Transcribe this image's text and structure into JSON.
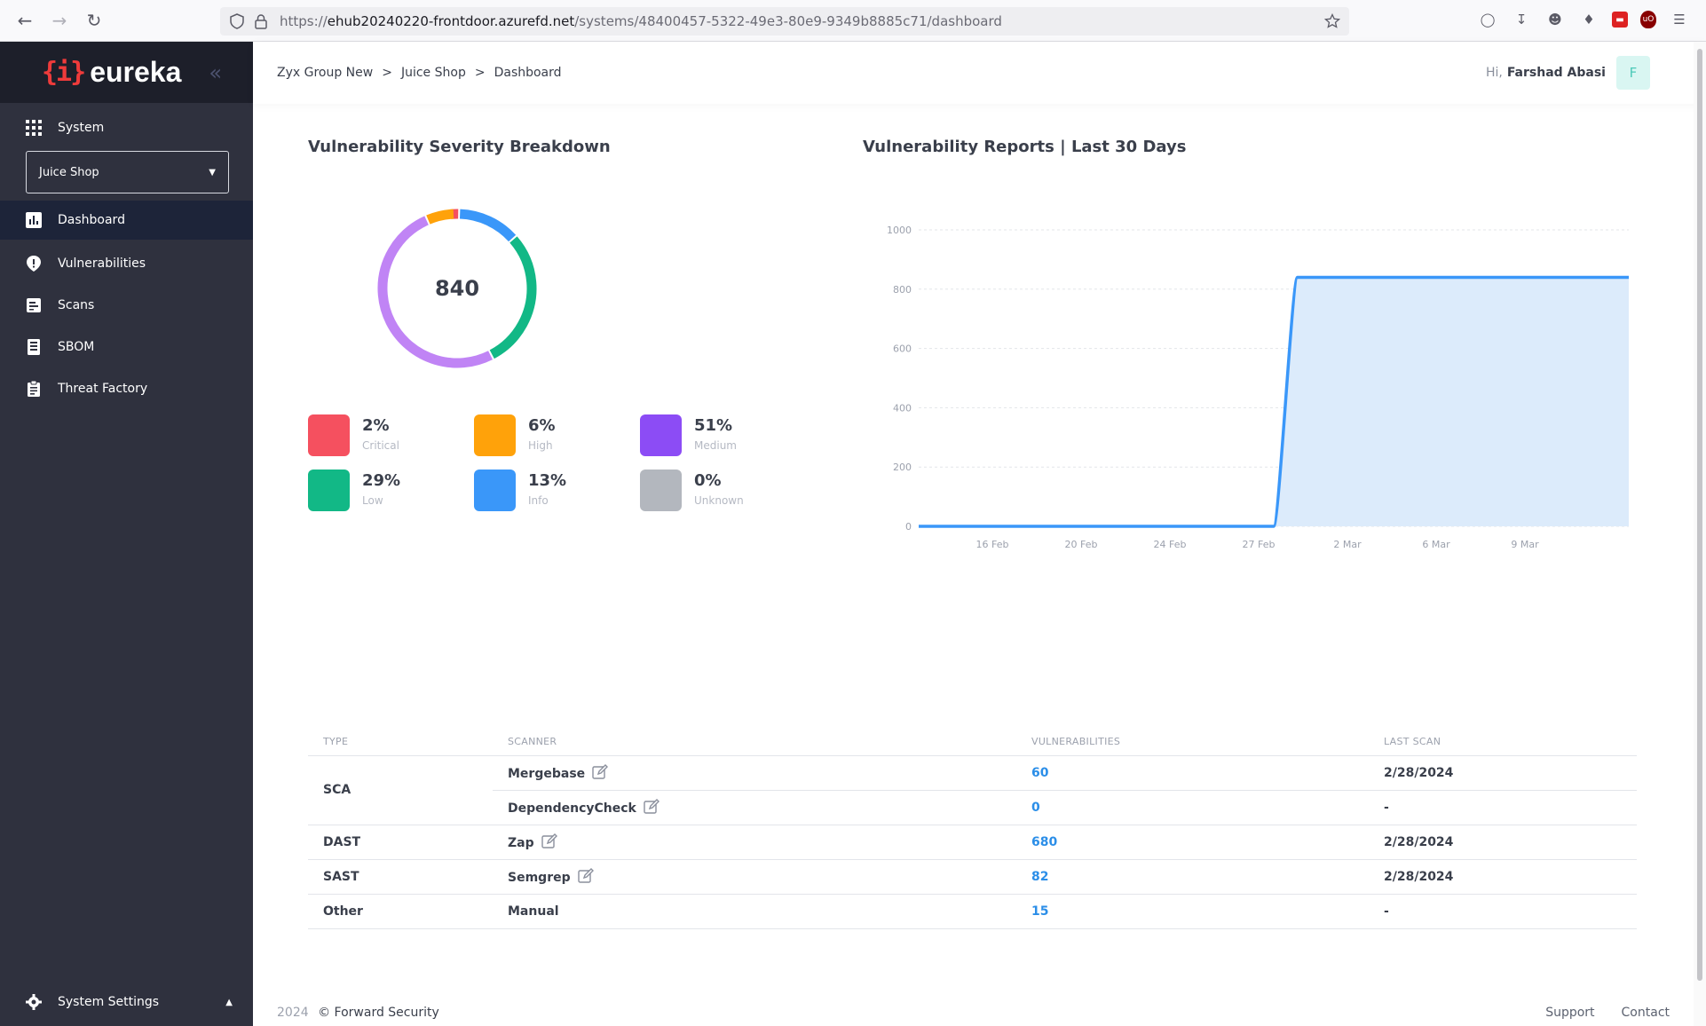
{
  "browser": {
    "url_prefix": "https://",
    "url_host": "ehub20240220-frontdoor.azurefd.net",
    "url_path": "/systems/48400457-5322-49e3-80e9-9349b8885c71/dashboard"
  },
  "sidebar": {
    "logo_mark": "{i}",
    "logo_text": "eureka",
    "system_label": "System",
    "system_selected": "Juice Shop",
    "items": [
      {
        "label": "Dashboard",
        "icon": "bar-chart-icon",
        "active": true
      },
      {
        "label": "Vulnerabilities",
        "icon": "shield-alert-icon",
        "active": false
      },
      {
        "label": "Scans",
        "icon": "scan-icon",
        "active": false
      },
      {
        "label": "SBOM",
        "icon": "document-icon",
        "active": false
      },
      {
        "label": "Threat Factory",
        "icon": "clipboard-icon",
        "active": false
      }
    ],
    "settings_label": "System Settings"
  },
  "header": {
    "breadcrumb": [
      "Zyx Group New",
      "Juice Shop",
      "Dashboard"
    ],
    "breadcrumb_sep": ">",
    "greeting": "Hi,",
    "user_name": "Farshad Abasi",
    "avatar_initial": "F"
  },
  "severity": {
    "title": "Vulnerability Severity Breakdown",
    "total": "840",
    "items": [
      {
        "pct": "2%",
        "label": "Critical",
        "color": "#f5505f",
        "ring_color": "#f5505f",
        "share": 0.02
      },
      {
        "pct": "6%",
        "label": "High",
        "color": "#ffa20a",
        "ring_color": "#ffa20a",
        "share": 0.06
      },
      {
        "pct": "51%",
        "label": "Medium",
        "color": "#8c4cf5",
        "ring_color": "#c084f5",
        "share": 0.51
      },
      {
        "pct": "29%",
        "label": "Low",
        "color": "#12b886",
        "ring_color": "#12b886",
        "share": 0.29
      },
      {
        "pct": "13%",
        "label": "Info",
        "color": "#3a97f9",
        "ring_color": "#3a97f9",
        "share": 0.13
      },
      {
        "pct": "0%",
        "label": "Unknown",
        "color": "#b3b7be",
        "ring_color": "#b3b7be",
        "share": 0.0
      }
    ]
  },
  "reports": {
    "title": "Vulnerability Reports | Last 30 Days"
  },
  "chart_data": {
    "type": "area",
    "title": "Vulnerability Reports | Last 30 Days",
    "xlabel": "",
    "ylabel": "",
    "ylim": [
      0,
      1000
    ],
    "yticks": [
      "0",
      "200",
      "400",
      "600",
      "800",
      "1000"
    ],
    "xticks": [
      "16 Feb",
      "20 Feb",
      "24 Feb",
      "27 Feb",
      "2 Mar",
      "6 Mar",
      "9 Mar"
    ],
    "x_range": [
      "2024-02-12",
      "2024-03-13"
    ],
    "grid": "horizontal dashed",
    "color": "#3a97f9",
    "fill": "#dcebfb",
    "series": [
      {
        "x": [
          "2024-02-12",
          "2024-02-27",
          "2024-02-28",
          "2024-03-13"
        ],
        "y": [
          0,
          0,
          840,
          840
        ]
      }
    ]
  },
  "table": {
    "headers": [
      "TYPE",
      "SCANNER",
      "VULNERABILITIES",
      "LAST SCAN"
    ],
    "rows": [
      {
        "type": "SCA",
        "scanner": "Mergebase",
        "vulns": "60",
        "last_scan": "2/28/2024",
        "editable": true,
        "type_rowspan": 2
      },
      {
        "type": "",
        "scanner": "DependencyCheck",
        "vulns": "0",
        "last_scan": "-",
        "editable": true,
        "type_rowspan": 0
      },
      {
        "type": "DAST",
        "scanner": "Zap",
        "vulns": "680",
        "last_scan": "2/28/2024",
        "editable": true,
        "type_rowspan": 1
      },
      {
        "type": "SAST",
        "scanner": "Semgrep",
        "vulns": "82",
        "last_scan": "2/28/2024",
        "editable": true,
        "type_rowspan": 1
      },
      {
        "type": "Other",
        "scanner": "Manual",
        "vulns": "15",
        "last_scan": "-",
        "editable": false,
        "type_rowspan": 1
      }
    ]
  },
  "footer": {
    "year": "2024",
    "copyright": "© Forward Security",
    "support": "Support",
    "contact": "Contact"
  }
}
